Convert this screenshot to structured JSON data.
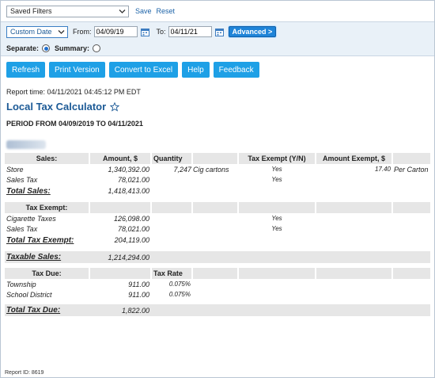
{
  "filter_bar": {
    "saved_filters": "Saved Filters",
    "save_link": "Save",
    "reset_link": "Reset"
  },
  "date_bar": {
    "range_select": "Custom Date",
    "from_label": "From:",
    "from_value": "04/09/19",
    "to_label": "To:",
    "to_value": "04/11/21",
    "advanced_button": "Advanced >",
    "separate_label": "Separate:",
    "summary_label": "Summary:",
    "separate_selected": true
  },
  "toolbar": {
    "refresh": "Refresh",
    "print_version": "Print Version",
    "convert_excel": "Convert to Excel",
    "help": "Help",
    "feedback": "Feedback"
  },
  "report": {
    "report_time": "Report time: 04/11/2021 04:45:12 PM EDT",
    "title": "Local Tax Calculator",
    "period": "PERIOD FROM 04/09/2019 TO 04/11/2021",
    "report_id": "Report ID: 8619"
  },
  "sales_table": {
    "headers": [
      "Sales:",
      "Amount, $",
      "Quantity",
      "",
      "Tax Exempt (Y/N)",
      "Amount Exempt, $",
      ""
    ],
    "rows": [
      {
        "name": "Store",
        "amount": "1,340,392.00",
        "qty": "7,247",
        "unit": "Cig cartons",
        "exempt": "Yes",
        "amount_exempt": "17.40",
        "per": "Per Carton"
      },
      {
        "name": "Sales Tax",
        "amount": "78,021.00",
        "qty": "",
        "unit": "",
        "exempt": "Yes",
        "amount_exempt": "",
        "per": ""
      }
    ],
    "total_label": "Total Sales:",
    "total_value": "1,418,413.00"
  },
  "exempt_table": {
    "header": "Tax Exempt:",
    "rows": [
      {
        "name": "Cigarette Taxes",
        "amount": "126,098.00",
        "exempt": "Yes"
      },
      {
        "name": "Sales Tax",
        "amount": "78,021.00",
        "exempt": "Yes"
      }
    ],
    "total_label": "Total Tax Exempt:",
    "total_value": "204,119.00"
  },
  "taxable": {
    "label": "Taxable Sales:",
    "value": "1,214,294.00"
  },
  "due_table": {
    "header": "Tax Due:",
    "rate_header": "Tax Rate",
    "rows": [
      {
        "name": "Township",
        "amount": "911.00",
        "rate": "0.075%"
      },
      {
        "name": "School District",
        "amount": "911.00",
        "rate": "0.075%"
      }
    ],
    "total_label": "Total Tax Due:",
    "total_value": "1,822.00"
  },
  "colors": {
    "accent": "#1ea0e6",
    "title": "#1c5a96",
    "header_bg": "#e6e6e6",
    "date_bar_bg": "#e9f1f8"
  }
}
